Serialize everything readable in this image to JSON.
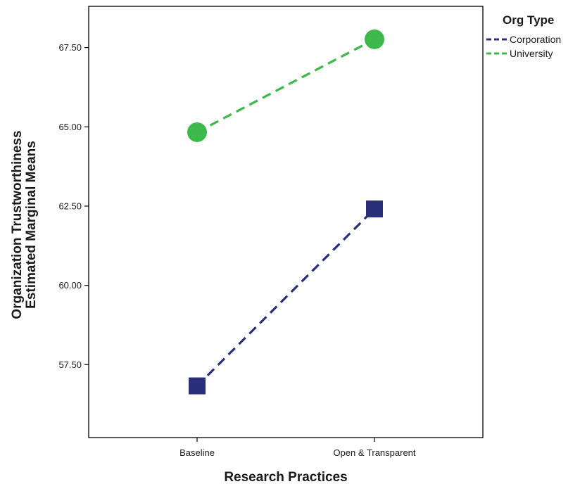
{
  "chart_data": {
    "type": "line",
    "categories": [
      "Baseline",
      "Open & Transparent"
    ],
    "series": [
      {
        "name": "Corporation",
        "values": [
          56.83,
          62.41
        ],
        "color": "#2a2f7a",
        "marker": "square",
        "line": "dashed"
      },
      {
        "name": "University",
        "values": [
          64.83,
          67.76
        ],
        "color": "#3cb94a",
        "marker": "circle",
        "line": "dashed"
      }
    ],
    "xlabel": "Research Practices",
    "ylabel": [
      "Organization Trustworthiness",
      "Estimated Marginal Means"
    ],
    "y_ticks": [
      "57.50",
      "60.00",
      "62.50",
      "65.00",
      "67.50"
    ],
    "ylim": [
      55.2,
      68.8
    ],
    "grid": false,
    "legend": {
      "title": "Org Type",
      "placement": "top-right-outside"
    }
  }
}
